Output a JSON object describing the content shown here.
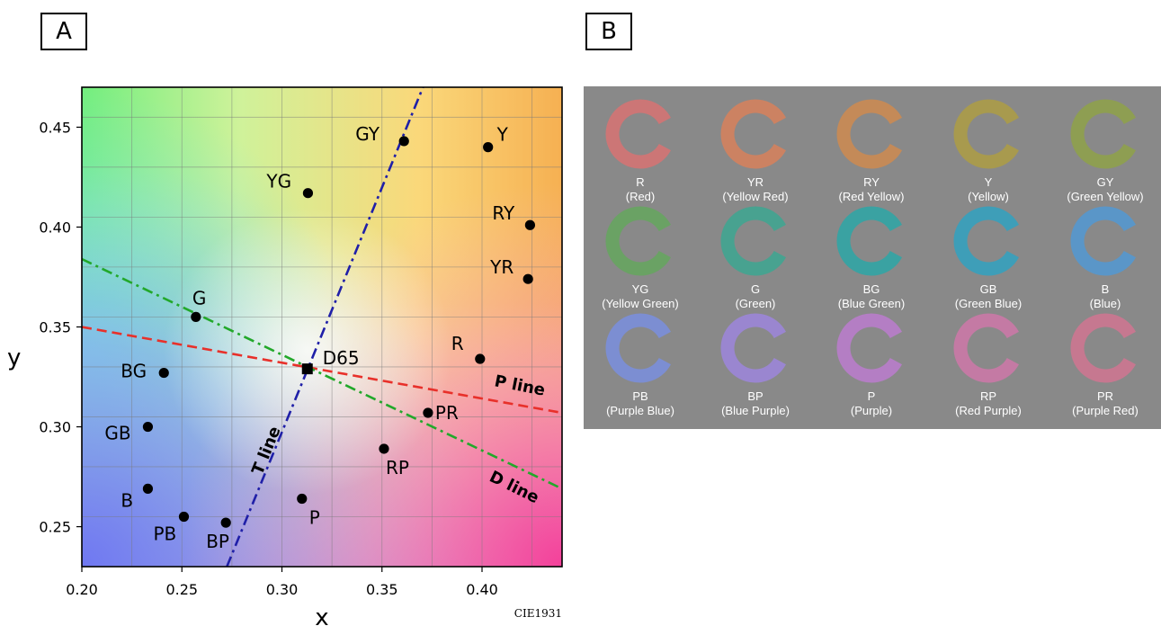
{
  "panels": {
    "a_label": "A",
    "b_label": "B"
  },
  "chart_data": {
    "type": "scatter",
    "title": "",
    "xlabel": "x",
    "ylabel": "y",
    "xlim": [
      0.2,
      0.44
    ],
    "ylim": [
      0.23,
      0.47
    ],
    "xticks": [
      0.2,
      0.25,
      0.3,
      0.35,
      0.4
    ],
    "yticks": [
      0.25,
      0.3,
      0.35,
      0.4,
      0.45
    ],
    "xtick_labels": [
      "0.20",
      "0.25",
      "0.30",
      "0.35",
      "0.40"
    ],
    "ytick_labels": [
      "0.25",
      "0.30",
      "0.35",
      "0.40",
      "0.45"
    ],
    "grid": true,
    "footnote": "CIE1931",
    "points": [
      {
        "label": "GY",
        "x": 0.361,
        "y": 0.443
      },
      {
        "label": "Y",
        "x": 0.403,
        "y": 0.44
      },
      {
        "label": "YG",
        "x": 0.313,
        "y": 0.417
      },
      {
        "label": "RY",
        "x": 0.424,
        "y": 0.401
      },
      {
        "label": "YR",
        "x": 0.423,
        "y": 0.374
      },
      {
        "label": "G",
        "x": 0.257,
        "y": 0.355
      },
      {
        "label": "R",
        "x": 0.399,
        "y": 0.334
      },
      {
        "label": "BG",
        "x": 0.241,
        "y": 0.327
      },
      {
        "label": "PR",
        "x": 0.373,
        "y": 0.307
      },
      {
        "label": "GB",
        "x": 0.233,
        "y": 0.3
      },
      {
        "label": "RP",
        "x": 0.351,
        "y": 0.289
      },
      {
        "label": "B",
        "x": 0.233,
        "y": 0.269
      },
      {
        "label": "P",
        "x": 0.31,
        "y": 0.264
      },
      {
        "label": "PB",
        "x": 0.251,
        "y": 0.255
      },
      {
        "label": "BP",
        "x": 0.272,
        "y": 0.252
      }
    ],
    "white_point": {
      "label": "D65",
      "x": 0.3127,
      "y": 0.329
    },
    "lines": [
      {
        "label": "T line",
        "color": "#1f1fa8",
        "style": "dash-dot",
        "x1": 0.2725,
        "y1": 0.23,
        "x2": 0.3705,
        "y2": 0.47
      },
      {
        "label": "P line",
        "color": "#e8302a",
        "style": "dashed",
        "x1": 0.2,
        "y1": 0.35,
        "x2": 0.44,
        "y2": 0.307
      },
      {
        "label": "D line",
        "color": "#22a82a",
        "style": "dash-dot",
        "x1": 0.2,
        "y1": 0.384,
        "x2": 0.44,
        "y2": 0.269
      }
    ]
  },
  "swatches": [
    {
      "code": "R",
      "name": "(Red)",
      "color": "#cc7676"
    },
    {
      "code": "YR",
      "name": "(Yellow Red)",
      "color": "#cc8262"
    },
    {
      "code": "RY",
      "name": "(Red Yellow)",
      "color": "#c48a58"
    },
    {
      "code": "Y",
      "name": "(Yellow)",
      "color": "#a89a4e"
    },
    {
      "code": "GY",
      "name": "(Green Yellow)",
      "color": "#8e9e52"
    },
    {
      "code": "YG",
      "name": "(Yellow Green)",
      "color": "#6aa264"
    },
    {
      "code": "G",
      "name": "(Green)",
      "color": "#48a290"
    },
    {
      "code": "BG",
      "name": "(Blue Green)",
      "color": "#3aa2a2"
    },
    {
      "code": "GB",
      "name": "(Green Blue)",
      "color": "#3e9eb8"
    },
    {
      "code": "B",
      "name": "(Blue)",
      "color": "#5a96c8"
    },
    {
      "code": "PB",
      "name": "(Purple Blue)",
      "color": "#7c8ed2"
    },
    {
      "code": "BP",
      "name": "(Blue Purple)",
      "color": "#9a86d0"
    },
    {
      "code": "P",
      "name": "(Purple)",
      "color": "#b47ec4"
    },
    {
      "code": "RP",
      "name": "(Red Purple)",
      "color": "#c47aa4"
    },
    {
      "code": "PR",
      "name": "(Purple Red)",
      "color": "#c67890"
    }
  ]
}
